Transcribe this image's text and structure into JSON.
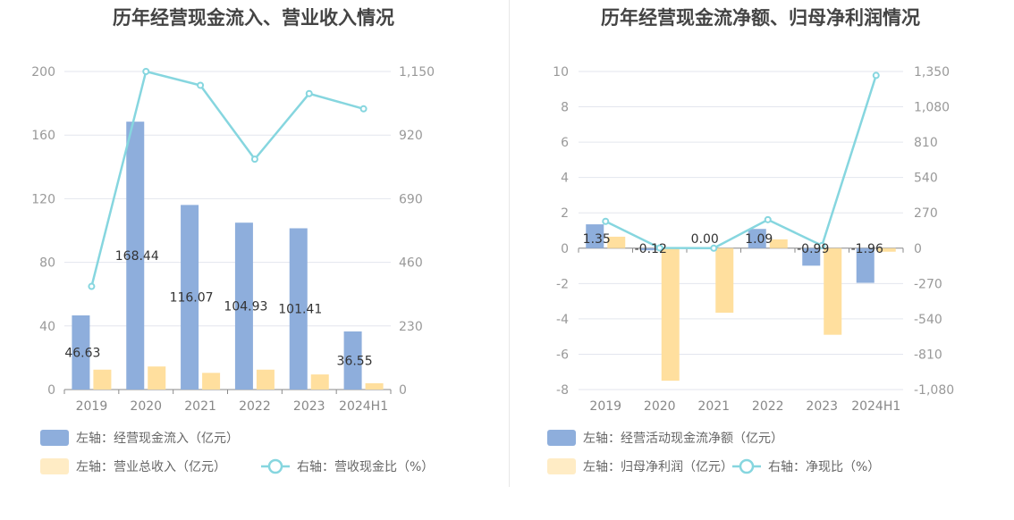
{
  "chart_data": [
    {
      "type": "bar",
      "title": "历年经营现金流入、营业收入情况",
      "categories": [
        "2019",
        "2020",
        "2021",
        "2022",
        "2023",
        "2024H1"
      ],
      "left_axis": {
        "ylim": [
          0,
          200
        ],
        "ticks": [
          "0",
          "40",
          "80",
          "120",
          "160",
          "200"
        ]
      },
      "right_axis": {
        "ylim": [
          0,
          1150
        ],
        "ticks": [
          "0",
          "230",
          "460",
          "690",
          "920",
          "1,150"
        ]
      },
      "grid": true,
      "legend_position": "bottom",
      "series": [
        {
          "name": "左轴：经营现金流入（亿元）",
          "kind": "bar",
          "axis": "left",
          "color": "#8eaedc",
          "values": [
            46.63,
            168.44,
            116.07,
            104.93,
            101.41,
            36.55
          ],
          "labels": [
            "46.63",
            "168.44",
            "116.07",
            "104.93",
            "101.41",
            "36.55"
          ]
        },
        {
          "name": "左轴：营业总收入（亿元）",
          "kind": "bar",
          "axis": "left",
          "color": "#ffdf9e",
          "values": [
            12.5,
            14.5,
            10.5,
            12.5,
            9.5,
            4.0
          ]
        },
        {
          "name": "右轴：营收现金比（%）",
          "kind": "line",
          "axis": "right",
          "color": "#86d6df",
          "values": [
            373,
            1150,
            1100,
            833,
            1070,
            1015
          ]
        }
      ]
    },
    {
      "type": "bar",
      "title": "历年经营现金流净额、归母净利润情况",
      "categories": [
        "2019",
        "2020",
        "2021",
        "2022",
        "2023",
        "2024H1"
      ],
      "left_axis": {
        "ylim": [
          -8,
          10
        ],
        "ticks": [
          "-8",
          "-6",
          "-4",
          "-2",
          "0",
          "2",
          "4",
          "6",
          "8",
          "10"
        ]
      },
      "right_axis": {
        "ylim": [
          -1080,
          1350
        ],
        "ticks": [
          "-1,080",
          "-810",
          "-540",
          "-270",
          "0",
          "270",
          "540",
          "810",
          "1,080",
          "1,350"
        ]
      },
      "grid": true,
      "legend_position": "bottom",
      "series": [
        {
          "name": "左轴：经营活动现金流净额（亿元）",
          "kind": "bar",
          "axis": "left",
          "color": "#8eaedc",
          "values": [
            1.35,
            -0.12,
            0.0,
            1.09,
            -0.99,
            -1.96
          ],
          "labels": [
            "1.35",
            "-0.12",
            "0.00",
            "1.09",
            "-0.99",
            "-1.96"
          ]
        },
        {
          "name": "左轴：归母净利润（亿元）",
          "kind": "bar",
          "axis": "left",
          "color": "#ffdf9e",
          "values": [
            0.65,
            -7.5,
            -3.65,
            0.5,
            -4.9,
            -0.2
          ]
        },
        {
          "name": "右轴：净现比（%）",
          "kind": "line",
          "axis": "right",
          "color": "#86d6df",
          "values": [
            205,
            2,
            0,
            218,
            20,
            1320
          ]
        }
      ]
    }
  ]
}
